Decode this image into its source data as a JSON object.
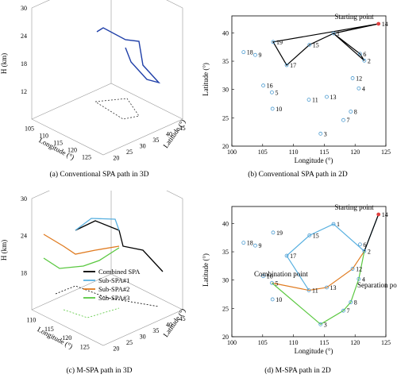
{
  "captions": {
    "a": "(a) Conventional SPA path in 3D",
    "b": "(b) Conventional SPA path in 2D",
    "c": "(c) M-SPA path in 3D",
    "d": "(d) M-SPA path in 2D"
  },
  "colors": {
    "blue_path": "#1f3fa8",
    "sub1": "#58b0e0",
    "sub2": "#e07b20",
    "sub3": "#5ac840",
    "marker": "#4a9ad0",
    "start": "#e04040"
  },
  "chart_data": [
    {
      "id": "a",
      "type": "line",
      "subtype": "3d",
      "xlabel": "Longitude (°)",
      "ylabel": "Latitude (°)",
      "zlabel": "H (km)",
      "x_ticks": [
        "105",
        "110",
        "115",
        "120",
        "125"
      ],
      "y_ticks": [
        "20",
        "25",
        "30",
        "35",
        "40",
        "45"
      ],
      "z_ticks": [
        "12",
        "18",
        "24",
        "30"
      ],
      "series": [
        {
          "values": []
        }
      ]
    },
    {
      "id": "b",
      "type": "scatter",
      "xlabel": "Longitude (°)",
      "ylabel": "Latitude (°)",
      "xlim": [
        100,
        125
      ],
      "ylim": [
        20,
        43
      ],
      "x_ticks": [
        "100",
        "105",
        "110",
        "115",
        "120",
        "125"
      ],
      "y_ticks": [
        "20",
        "25",
        "30",
        "35",
        "40"
      ],
      "annotation": "Starting point",
      "points": [
        {
          "label": "1",
          "x": 116.5,
          "y": 39.9
        },
        {
          "label": "2",
          "x": 121.5,
          "y": 35.1
        },
        {
          "label": "3",
          "x": 114.4,
          "y": 22.2
        },
        {
          "label": "4",
          "x": 120.6,
          "y": 30.2
        },
        {
          "label": "5",
          "x": 106.5,
          "y": 29.5
        },
        {
          "label": "6",
          "x": 120.8,
          "y": 36.3
        },
        {
          "label": "7",
          "x": 118.1,
          "y": 24.6
        },
        {
          "label": "8",
          "x": 119.3,
          "y": 26.1
        },
        {
          "label": "9",
          "x": 103.8,
          "y": 36.1
        },
        {
          "label": "10",
          "x": 106.6,
          "y": 26.6
        },
        {
          "label": "11",
          "x": 112.5,
          "y": 28.2
        },
        {
          "label": "12",
          "x": 119.6,
          "y": 32.0
        },
        {
          "label": "13",
          "x": 115.4,
          "y": 28.7
        },
        {
          "label": "14",
          "x": 123.8,
          "y": 41.6
        },
        {
          "label": "15",
          "x": 112.6,
          "y": 37.9
        },
        {
          "label": "16",
          "x": 105.1,
          "y": 30.7
        },
        {
          "label": "17",
          "x": 108.9,
          "y": 34.3
        },
        {
          "label": "18",
          "x": 101.9,
          "y": 36.6
        },
        {
          "label": "19",
          "x": 106.7,
          "y": 38.4
        }
      ],
      "series": [
        {
          "path": [
            "14",
            "1",
            "2",
            "6",
            "1",
            "15",
            "17",
            "19",
            "14"
          ]
        }
      ]
    },
    {
      "id": "c",
      "type": "line",
      "subtype": "3d",
      "xlabel": "Longitude (°)",
      "ylabel": "Latitude (°)",
      "zlabel": "H (km)",
      "x_ticks": [
        "110",
        "115",
        "120",
        "125"
      ],
      "y_ticks": [
        "20",
        "25",
        "30",
        "35",
        "40",
        "45"
      ],
      "z_ticks": [
        "18",
        "24",
        "30"
      ],
      "legend": [
        "Combined SPA",
        "Sub-SPA#1",
        "Sub-SPA#2",
        "Sub-SPA#3"
      ],
      "legend_position": "center-right",
      "series": [
        {
          "name": "Combined SPA",
          "values": []
        },
        {
          "name": "Sub-SPA#1",
          "values": []
        },
        {
          "name": "Sub-SPA#2",
          "values": []
        },
        {
          "name": "Sub-SPA#3",
          "values": []
        }
      ]
    },
    {
      "id": "d",
      "type": "scatter",
      "xlabel": "Longitude (°)",
      "ylabel": "Latitude (°)",
      "xlim": [
        100,
        125
      ],
      "ylim": [
        20,
        43
      ],
      "x_ticks": [
        "100",
        "105",
        "110",
        "115",
        "120",
        "125"
      ],
      "y_ticks": [
        "20",
        "25",
        "30",
        "35",
        "40"
      ],
      "annotations": [
        "Starting point",
        "Separation point",
        "Combination point"
      ],
      "series": [
        {
          "path": [
            "14",
            "2",
            "1",
            "15",
            "17",
            "11"
          ]
        },
        {
          "path": [
            "2",
            "12",
            "13",
            "11",
            "5"
          ]
        },
        {
          "path": [
            "2",
            "4",
            "8",
            "7",
            "3",
            "5"
          ]
        },
        {
          "path": [
            "14",
            "2"
          ]
        }
      ]
    }
  ]
}
